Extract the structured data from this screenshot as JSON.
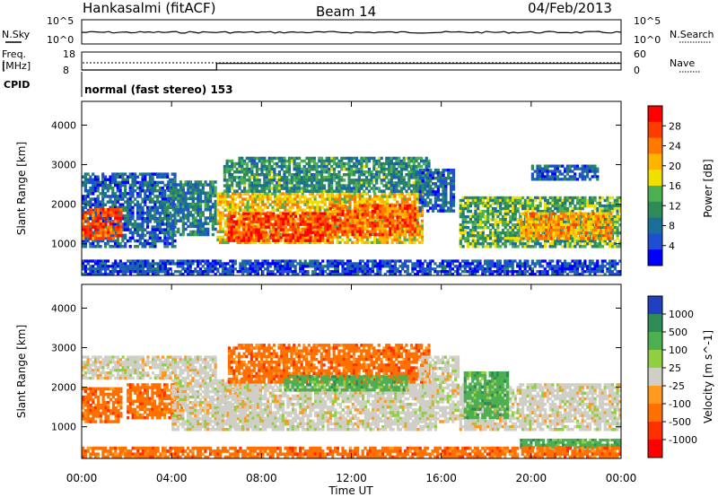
{
  "header": {
    "station": "Hankasalmi (fitACF)",
    "beam": "Beam 14",
    "date": "04/Feb/2013"
  },
  "noise_panel": {
    "left_label": "N.Sky",
    "right_label": "N.Search",
    "left_ticks": [
      "10^5",
      "10^0"
    ],
    "right_ticks": [
      "10^5",
      "10^0"
    ]
  },
  "freq_panel": {
    "left_label_1": "Freq.",
    "left_label_2": "[MHz]",
    "right_label": "Nave",
    "left_ticks": [
      "18",
      "8"
    ],
    "right_ticks": [
      "60",
      "0"
    ],
    "freq_mhz": 12,
    "nave_segments": [
      {
        "from_h": 0,
        "to_h": 6,
        "value": 0
      },
      {
        "from_h": 6,
        "to_h": 18,
        "value": 22
      },
      {
        "from_h": 18,
        "to_h": 24,
        "value": 22
      }
    ]
  },
  "cpid_panel": {
    "label": "CPID",
    "text": "normal (fast stereo) 153"
  },
  "x_axis": {
    "label": "Time UT",
    "ticks": [
      "00:00",
      "04:00",
      "08:00",
      "12:00",
      "16:00",
      "20:00",
      "00:00"
    ]
  },
  "power_colorbar": {
    "label": "Power [dB]",
    "ticks": [
      "28",
      "24",
      "20",
      "16",
      "12",
      "8",
      "4"
    ],
    "colors": [
      "#ff0000",
      "#ff3c00",
      "#ff7800",
      "#ffb400",
      "#f0e000",
      "#4caf50",
      "#2e8b57",
      "#1a6f9a",
      "#1f4fd0",
      "#0000ff"
    ]
  },
  "velocity_colorbar": {
    "label": "Velocity [m s^-1]",
    "ticks": [
      "1000",
      "500",
      "100",
      "25",
      "-25",
      "-100",
      "-500",
      "-1000"
    ],
    "colors": [
      "#2040c0",
      "#2e8b57",
      "#4caf50",
      "#90d040",
      "#cfcfc8",
      "#ff9a20",
      "#ff7000",
      "#ff3000",
      "#ff0000"
    ]
  },
  "chart_data": [
    {
      "type": "heatmap",
      "name_on_chart": "Power [dB]",
      "ylabel": "Slant Range [km]",
      "xlabel": "Time UT",
      "xlim": [
        0,
        24
      ],
      "ylim": [
        200,
        4600
      ],
      "y_ticks": [
        1000,
        2000,
        3000,
        4000
      ],
      "regions": [
        {
          "t0": 0.0,
          "t1": 4.2,
          "r0": 900,
          "r1": 2800,
          "level": "mixed",
          "power_db": 8
        },
        {
          "t0": 0.0,
          "t1": 1.8,
          "r0": 1100,
          "r1": 1900,
          "power_db": 26
        },
        {
          "t0": 3.8,
          "t1": 6.0,
          "r0": 1200,
          "r1": 2600,
          "power_db": 10
        },
        {
          "t0": 6.0,
          "t1": 15.2,
          "r0": 1000,
          "r1": 2300,
          "power_db": 20
        },
        {
          "t0": 6.5,
          "t1": 11.0,
          "r0": 1050,
          "r1": 1800,
          "power_db": 27
        },
        {
          "t0": 11.0,
          "t1": 15.0,
          "r0": 1200,
          "r1": 2000,
          "power_db": 25
        },
        {
          "t0": 6.3,
          "t1": 15.5,
          "r0": 2300,
          "r1": 3200,
          "power_db": 12
        },
        {
          "t0": 15.0,
          "t1": 16.6,
          "r0": 1800,
          "r1": 2900,
          "power_db": 8
        },
        {
          "t0": 16.8,
          "t1": 24.0,
          "r0": 900,
          "r1": 2200,
          "power_db": 14
        },
        {
          "t0": 19.5,
          "t1": 23.6,
          "r0": 1100,
          "r1": 1800,
          "power_db": 22
        },
        {
          "t0": 20.0,
          "t1": 23.0,
          "r0": 2600,
          "r1": 3000,
          "power_db": 8
        },
        {
          "t0": 0.0,
          "t1": 24.0,
          "r0": 200,
          "r1": 600,
          "power_db": 6
        }
      ]
    },
    {
      "type": "heatmap",
      "name_on_chart": "Velocity [m s^-1]",
      "ylabel": "Slant Range [km]",
      "xlabel": "Time UT",
      "xlim": [
        0,
        24
      ],
      "ylim": [
        200,
        4600
      ],
      "y_ticks": [
        1000,
        2000,
        3000,
        4000
      ],
      "regions": [
        {
          "t0": 0.0,
          "t1": 6.0,
          "r0": 2200,
          "r1": 2800,
          "velocity": 0
        },
        {
          "t0": 0.0,
          "t1": 1.8,
          "r0": 1100,
          "r1": 2000,
          "velocity": -300
        },
        {
          "t0": 2.0,
          "t1": 4.5,
          "r0": 1200,
          "r1": 2100,
          "velocity": -150
        },
        {
          "t0": 4.0,
          "t1": 8.0,
          "r0": 900,
          "r1": 2200,
          "velocity": 0
        },
        {
          "t0": 6.0,
          "t1": 15.8,
          "r0": 900,
          "r1": 2100,
          "velocity": 0
        },
        {
          "t0": 6.5,
          "t1": 15.5,
          "r0": 2100,
          "r1": 3100,
          "velocity": -200
        },
        {
          "t0": 9.0,
          "t1": 14.5,
          "r0": 1900,
          "r1": 2300,
          "velocity": 150
        },
        {
          "t0": 15.0,
          "t1": 16.8,
          "r0": 1100,
          "r1": 2800,
          "velocity": 0
        },
        {
          "t0": 16.8,
          "t1": 24.0,
          "r0": 900,
          "r1": 2100,
          "velocity": 0
        },
        {
          "t0": 17.0,
          "t1": 19.0,
          "r0": 1200,
          "r1": 2400,
          "velocity": 200
        },
        {
          "t0": 19.5,
          "t1": 24.0,
          "r0": 450,
          "r1": 700,
          "velocity": 100
        },
        {
          "t0": 0.0,
          "t1": 24.0,
          "r0": 200,
          "r1": 500,
          "velocity": -100
        }
      ]
    }
  ]
}
